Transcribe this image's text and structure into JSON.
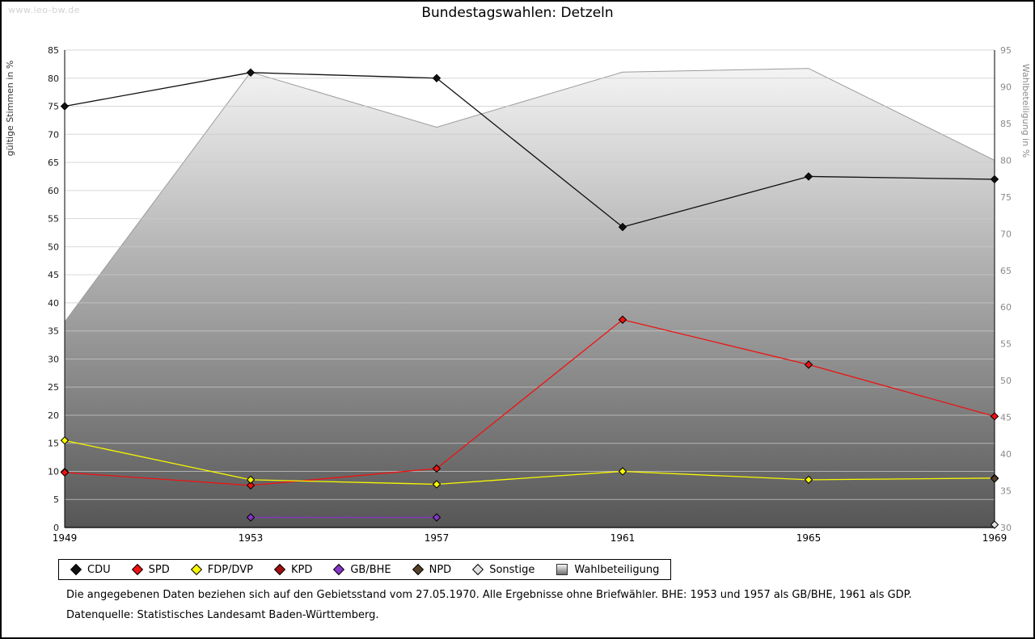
{
  "page": {
    "watermark": "www.leo-bw.de"
  },
  "header": {
    "title": "Bundestagswahlen: Detzeln"
  },
  "chart_data": {
    "type": "line",
    "title": "Bundestagswahlen: Detzeln",
    "categories": [
      "1949",
      "1953",
      "1957",
      "1961",
      "1965",
      "1969"
    ],
    "left_axis": {
      "label": "gültige Stimmen in %",
      "min": 0,
      "max": 85,
      "step": 5
    },
    "right_axis": {
      "label": "Wahlbeteiligung in %",
      "min": 30,
      "max": 95,
      "step": 5
    },
    "grid": true,
    "legend_position": "bottom",
    "area_series": {
      "name": "Wahlbeteiligung",
      "axis": "right",
      "values": [
        58,
        92,
        84.5,
        92,
        92.5,
        80
      ],
      "fill_top": "#fafafa",
      "fill_bottom": "#565656",
      "stroke": "#9b9b9b"
    },
    "series": [
      {
        "name": "CDU",
        "color": "#111111",
        "values": [
          75,
          81,
          80,
          53.5,
          62.5,
          62
        ]
      },
      {
        "name": "SPD",
        "color": "#ee1212",
        "values": [
          9.8,
          7.5,
          10.5,
          37,
          29,
          19.8
        ]
      },
      {
        "name": "FDP/DVP",
        "color": "#f8f800",
        "values": [
          15.5,
          8.5,
          7.7,
          10,
          8.5,
          8.8
        ]
      },
      {
        "name": "KPD",
        "color": "#a01010",
        "values": [
          9.9,
          null,
          null,
          null,
          null,
          null
        ]
      },
      {
        "name": "GB/BHE",
        "color": "#8636c8",
        "values": [
          null,
          1.8,
          1.8,
          null,
          null,
          null
        ]
      },
      {
        "name": "NPD",
        "color": "#55402a",
        "values": [
          null,
          null,
          null,
          null,
          null,
          8.7
        ]
      },
      {
        "name": "Sonstige",
        "color": "#e2e2e2",
        "values": [
          null,
          null,
          null,
          null,
          null,
          0.5
        ]
      }
    ]
  },
  "legend": {
    "items": [
      {
        "label": "CDU",
        "color": "#111111",
        "shape": "diamond"
      },
      {
        "label": "SPD",
        "color": "#ee1212",
        "shape": "diamond"
      },
      {
        "label": "FDP/DVP",
        "color": "#f8f800",
        "shape": "diamond"
      },
      {
        "label": "KPD",
        "color": "#a01010",
        "shape": "diamond"
      },
      {
        "label": "GB/BHE",
        "color": "#8636c8",
        "shape": "diamond"
      },
      {
        "label": "NPD",
        "color": "#55402a",
        "shape": "diamond"
      },
      {
        "label": "Sonstige",
        "color": "#e2e2e2",
        "shape": "diamond"
      },
      {
        "label": "Wahlbeteiligung",
        "color": "#bdbdbd",
        "shape": "square"
      }
    ]
  },
  "footnotes": {
    "line1": "Die angegebenen Daten beziehen sich auf den Gebietsstand vom 27.05.1970. Alle Ergebnisse ohne Briefwähler. BHE: 1953 und 1957 als GB/BHE, 1961 als GDP.",
    "line2": "Datenquelle: Statistisches Landesamt Baden-Württemberg."
  }
}
